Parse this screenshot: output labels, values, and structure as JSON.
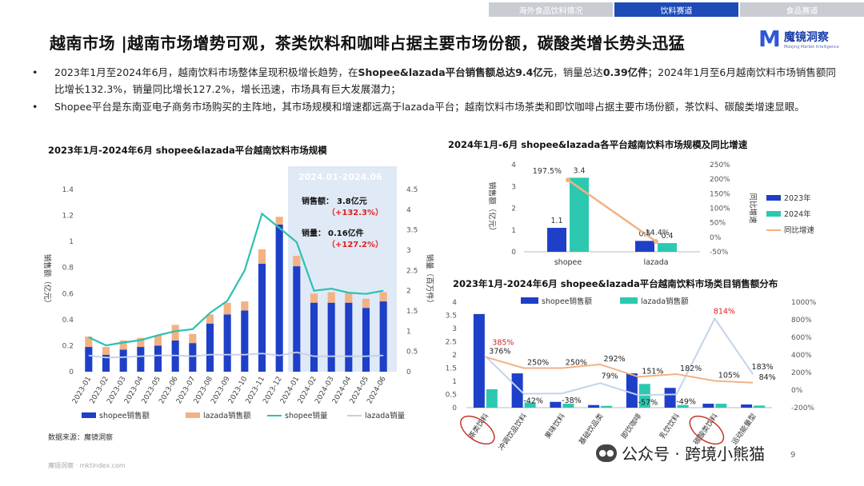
{
  "tabs": [
    {
      "label": "海外食品饮料情况"
    },
    {
      "label": "饮料赛道"
    },
    {
      "label": "食品赛道"
    }
  ],
  "header": {
    "title": "越南市场 |越南市场增势可观，茶类饮料和咖啡占据主要市场份额，碳酸类增长势头迅猛"
  },
  "logo": {
    "cn": "魔镜洞察",
    "en": "Moojing Market Intelligence",
    "mark": "M"
  },
  "bullets": {
    "b1_a": "2023年1月至2024年6月，越南饮料市场整体呈现积极增长趋势，在",
    "b1_b": "Shopee&lazada平台销售额总达9.4亿元",
    "b1_c": "，销量总达",
    "b1_d": "0.39亿件",
    "b1_e": "；2024年1月至6月越南饮料市场销售额同比增长132.3%，销量同比增长127.2%，增长迅速，市场具有巨大发展潜力；",
    "b2": "Shopee平台是东南亚电子商务市场购买的主阵地，其市场规模和增速都远高于lazada平台；越南饮料市场茶类和即饮咖啡占据主要市场份额，茶饮料、碳酸类增速显眼。"
  },
  "footer": {
    "source": "数据来源：魔镜洞察",
    "site": "魔镜洞察 · mktindex.com",
    "watermark": "公众号 · 跨境小熊猫",
    "page": "9"
  },
  "chart_data": [
    {
      "type": "bar",
      "title": "2023年1月-2024年6月 shopee&lazada平台越南饮料市场规模",
      "ylabel": "销售额（亿元）",
      "y2label": "销量（百万件）",
      "ylim": [
        0,
        1.4
      ],
      "y2lim": [
        0,
        4.5
      ],
      "yticks": [
        "0",
        "0.2",
        "0.4",
        "0.6",
        "0.8",
        "1",
        "1.2",
        "1.4"
      ],
      "y2ticks": [
        "0",
        "0.5",
        "1",
        "1.5",
        "2",
        "2.5",
        "3",
        "3.5",
        "4",
        "4.5"
      ],
      "categories": [
        "2023-01",
        "2023-02",
        "2023-03",
        "2023-04",
        "2023-05",
        "2023-06",
        "2023-07",
        "2023-08",
        "2023-09",
        "2023-10",
        "2023-11",
        "2023-12",
        "2024-01",
        "2024-02",
        "2024-03",
        "2024-04",
        "2024-05",
        "2024-06"
      ],
      "series": [
        {
          "name": "shopee销售额",
          "kind": "bar",
          "color": "#1e3fc8",
          "values": [
            0.19,
            0.13,
            0.17,
            0.19,
            0.2,
            0.24,
            0.22,
            0.37,
            0.44,
            0.47,
            0.83,
            1.13,
            0.81,
            0.53,
            0.53,
            0.53,
            0.49,
            0.54
          ]
        },
        {
          "name": "lazada销售额",
          "kind": "bar",
          "color": "#f2b283",
          "values": [
            0.08,
            0.06,
            0.07,
            0.07,
            0.08,
            0.12,
            0.07,
            0.07,
            0.09,
            0.07,
            0.11,
            0.06,
            0.08,
            0.07,
            0.08,
            0.08,
            0.07,
            0.07
          ]
        },
        {
          "name": "shopee销量",
          "kind": "line",
          "color": "#2cc1b2",
          "values": [
            0.85,
            0.65,
            0.72,
            0.78,
            0.9,
            1.0,
            1.05,
            1.45,
            1.75,
            2.5,
            3.9,
            3.55,
            3.2,
            2.0,
            2.05,
            1.95,
            1.92,
            2.0
          ]
        },
        {
          "name": "lazada销量",
          "kind": "line",
          "color": "#c5cfe6",
          "values": [
            0.4,
            0.35,
            0.36,
            0.38,
            0.4,
            0.4,
            0.38,
            0.42,
            0.42,
            0.42,
            0.45,
            0.4,
            0.48,
            0.38,
            0.38,
            0.38,
            0.38,
            0.4
          ]
        }
      ],
      "annotation": {
        "period": "2024.01-2024.06",
        "sales_label": "销售额：",
        "sales_value": "3.8亿元",
        "sales_growth": "（+132.3%）",
        "volume_label": "销量：",
        "volume_value": "0.16亿件",
        "volume_growth": "（+127.2%）"
      },
      "legend": "bottom"
    },
    {
      "type": "bar",
      "title": "2024年1月-6月 shopee&lazada各平台越南饮料市场规模及同比增速",
      "ylabel": "销售额（亿元）",
      "y2label": "同比增速",
      "ylim": [
        0,
        4
      ],
      "y2lim": [
        -50,
        250
      ],
      "yticks": [
        "0",
        "1",
        "2",
        "3",
        "4"
      ],
      "y2ticks": [
        "-50%",
        "0%",
        "50%",
        "100%",
        "150%",
        "200%",
        "250%"
      ],
      "categories": [
        "shopee",
        "lazada"
      ],
      "series": [
        {
          "name": "2023年",
          "kind": "bar",
          "color": "#1e3fc8",
          "values": [
            1.1,
            0.5
          ],
          "labels": [
            "1.1",
            "0.5"
          ]
        },
        {
          "name": "2024年",
          "kind": "bar",
          "color": "#2cc9b0",
          "values": [
            3.4,
            0.4
          ],
          "labels": [
            "3.4",
            "0.4"
          ]
        },
        {
          "name": "同比增速",
          "kind": "line",
          "color": "#f2b283",
          "values": [
            197.5,
            -14.4
          ],
          "labels": [
            "197.5%",
            "-14.4%"
          ]
        }
      ],
      "legend": "right"
    },
    {
      "type": "bar",
      "title": "2023年1月-2024年6月 shopee&lazada平台越南饮料市场类目销售额分布",
      "ylim": [
        0,
        4
      ],
      "y2lim": [
        -200,
        1000
      ],
      "yticks": [
        "0",
        "0.5",
        "1",
        "1.5",
        "2",
        "2.5",
        "3",
        "3.5",
        "4"
      ],
      "y2ticks": [
        "-200%",
        "0%",
        "200%",
        "400%",
        "600%",
        "800%",
        "1000%"
      ],
      "categories": [
        "茶类饮料",
        "冲调饮品饮料",
        "果味饮料",
        "基础饮品类",
        "即饮咖啡",
        "乳饮饮料",
        "碳酸类饮料",
        "运动能量型"
      ],
      "highlighted": [
        "茶类饮料",
        "碳酸类饮料"
      ],
      "series": [
        {
          "name": "shopee销售额",
          "kind": "bar",
          "color": "#1e3fc8",
          "values": [
            3.55,
            1.3,
            0.22,
            0.1,
            1.3,
            0.75,
            0.15,
            0.12
          ]
        },
        {
          "name": "lazada销售额",
          "kind": "bar",
          "color": "#2cc9b0",
          "values": [
            0.7,
            0.2,
            0.15,
            0.07,
            0.9,
            0.1,
            0.15,
            0.08
          ]
        },
        {
          "name": "shopee增速",
          "kind": "line",
          "color": "#f2b283",
          "values": [
            376,
            250,
            250,
            292,
            151,
            182,
            105,
            84
          ],
          "labels": [
            "376%",
            "250%",
            "250%",
            "292%",
            "151%",
            "182%",
            "105%",
            "84%"
          ]
        },
        {
          "name": "lazada增速",
          "kind": "line",
          "color": "#c5d3ec",
          "values": [
            385,
            -42,
            -38,
            79,
            -57,
            -49,
            814,
            183
          ],
          "labels": [
            "385%",
            "-42%",
            "-38%",
            "79%",
            "-57%",
            "-49%",
            "814%",
            "183%"
          ]
        }
      ],
      "legend": "top"
    }
  ]
}
